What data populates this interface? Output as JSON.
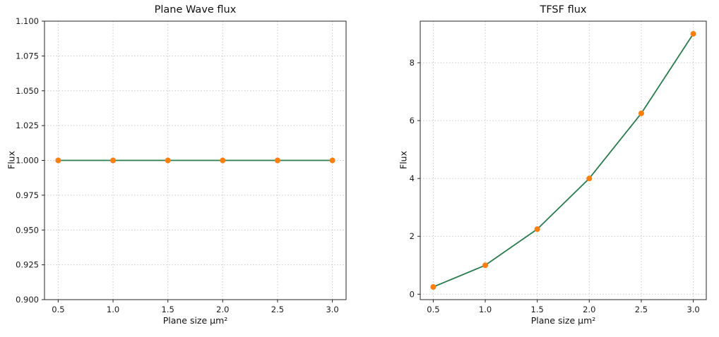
{
  "figure": {
    "background": "#ffffff"
  },
  "chart_data": [
    {
      "type": "line",
      "title": "Plane Wave flux",
      "xlabel": "Plane size μm²",
      "ylabel": "Flux",
      "x": [
        0.5,
        1.0,
        1.5,
        2.0,
        2.5,
        3.0
      ],
      "values": [
        1.0,
        1.0,
        1.0,
        1.0,
        1.0,
        1.0
      ],
      "xlim": [
        0.375,
        3.125
      ],
      "ylim": [
        0.9,
        1.1
      ],
      "xticks": [
        0.5,
        1.0,
        1.5,
        2.0,
        2.5,
        3.0
      ],
      "xtick_labels": [
        "0.5",
        "1.0",
        "1.5",
        "2.0",
        "2.5",
        "3.0"
      ],
      "yticks": [
        0.9,
        0.925,
        0.95,
        0.975,
        1.0,
        1.025,
        1.05,
        1.075,
        1.1
      ],
      "ytick_labels": [
        "0.900",
        "0.925",
        "0.950",
        "0.975",
        "1.000",
        "1.025",
        "1.050",
        "1.075",
        "1.100"
      ],
      "grid": true,
      "line_color": "#2a7b4d",
      "marker_color": "#ff7f0e"
    },
    {
      "type": "line",
      "title": "TFSF flux",
      "xlabel": "Plane size μm²",
      "ylabel": "Flux",
      "x": [
        0.5,
        1.0,
        1.5,
        2.0,
        2.5,
        3.0
      ],
      "values": [
        0.25,
        1.0,
        2.25,
        4.0,
        6.25,
        9.0
      ],
      "xlim": [
        0.375,
        3.125
      ],
      "ylim": [
        -0.1875,
        9.4375
      ],
      "xticks": [
        0.5,
        1.0,
        1.5,
        2.0,
        2.5,
        3.0
      ],
      "xtick_labels": [
        "0.5",
        "1.0",
        "1.5",
        "2.0",
        "2.5",
        "3.0"
      ],
      "yticks": [
        0,
        2,
        4,
        6,
        8
      ],
      "ytick_labels": [
        "0",
        "2",
        "4",
        "6",
        "8"
      ],
      "grid": true,
      "line_color": "#2a7b4d",
      "marker_color": "#ff7f0e"
    }
  ]
}
